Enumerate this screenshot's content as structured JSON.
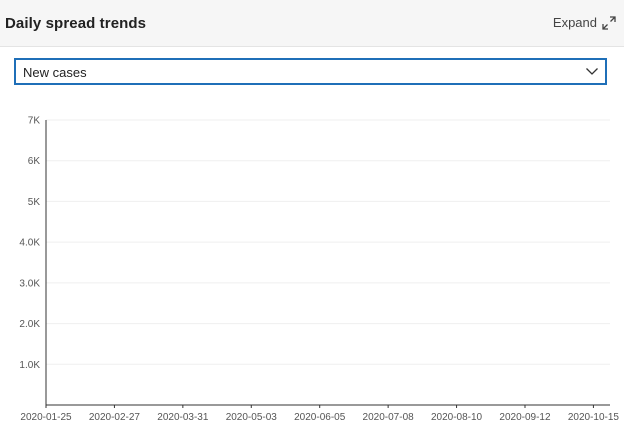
{
  "panel": {
    "title": "Daily spread trends",
    "expand_label": "Expand",
    "expand_icon": "expand-diagonal-icon"
  },
  "metric_select": {
    "value": "New cases",
    "chevron_icon": "chevron-down-icon"
  },
  "colors": {
    "bar_top": "#f7764a",
    "bar_bottom": "#fbb796",
    "border_accent": "#1f6fb8"
  },
  "chart_data": {
    "type": "bar",
    "title": "",
    "xlabel": "",
    "ylabel": "",
    "x_start": "2020-01-25",
    "x_end": "2020-10-22",
    "ylim": [
      0,
      7000
    ],
    "y_ticks": [
      {
        "value": 1000,
        "label": "1.0K"
      },
      {
        "value": 2000,
        "label": "2.0K"
      },
      {
        "value": 3000,
        "label": "3.0K"
      },
      {
        "value": 4000,
        "label": "4.0K"
      },
      {
        "value": 5000,
        "label": "5K"
      },
      {
        "value": 6000,
        "label": "6K"
      },
      {
        "value": 7000,
        "label": "7K"
      }
    ],
    "x_ticks": [
      "2020-01-25",
      "2020-02-27",
      "2020-03-31",
      "2020-05-03",
      "2020-06-05",
      "2020-07-08",
      "2020-08-10",
      "2020-09-12",
      "2020-10-15"
    ],
    "grid": true,
    "series": [
      {
        "values": [
          0,
          0,
          0,
          0,
          0,
          0,
          0,
          0,
          0,
          0,
          0,
          0,
          0,
          0,
          0,
          0,
          0,
          0,
          0,
          0,
          0,
          0,
          0,
          0,
          0,
          0,
          0,
          0,
          0,
          0,
          0,
          0,
          0,
          0,
          0,
          0,
          0,
          0,
          0,
          0,
          0,
          0,
          0,
          0,
          0,
          0,
          0,
          0,
          0,
          0,
          0,
          0,
          0,
          0,
          0,
          0,
          0,
          0,
          0,
          0,
          0,
          0,
          0,
          0,
          0,
          0,
          0,
          0,
          0,
          0,
          0,
          0,
          0,
          0,
          0,
          0,
          0,
          0,
          0,
          0,
          0,
          0,
          0,
          0,
          0,
          0,
          0,
          0,
          0,
          0,
          0,
          0,
          0,
          0,
          0,
          0,
          0,
          0,
          0,
          0,
          0,
          0,
          0,
          0,
          0,
          0,
          0,
          0,
          0,
          0,
          0,
          0,
          0,
          0,
          0,
          0,
          0,
          0,
          0,
          0,
          0,
          0,
          0,
          0,
          0,
          0,
          0,
          0,
          0,
          0,
          0,
          0,
          0,
          0,
          0,
          0,
          0,
          0,
          0,
          0,
          0,
          0,
          0,
          0,
          0,
          0,
          0,
          0,
          0,
          0,
          0,
          0,
          0,
          0,
          0,
          0,
          0,
          0,
          0,
          0,
          0,
          0,
          0,
          0,
          0,
          0,
          0,
          0,
          0,
          0,
          0,
          0,
          0,
          0,
          0,
          0,
          0,
          0,
          0,
          0,
          0,
          0,
          0,
          0,
          0,
          0,
          0,
          0,
          0,
          0,
          0,
          0,
          0,
          0,
          0,
          0,
          0,
          0,
          0,
          0,
          0,
          0,
          0,
          0,
          0,
          0,
          0,
          0,
          0,
          0,
          0,
          0,
          0,
          0,
          0,
          0,
          0,
          0,
          0,
          0,
          0,
          0,
          0,
          0,
          0,
          0,
          0,
          0,
          0,
          0,
          0,
          0,
          0,
          0,
          0,
          0,
          0,
          0,
          0,
          0,
          0,
          0,
          0,
          0,
          0,
          0,
          0,
          0,
          0,
          0,
          0,
          0,
          0,
          0,
          0,
          0,
          0,
          0,
          0,
          0,
          0,
          0,
          0,
          0,
          0,
          0,
          0,
          0,
          0,
          0,
          0,
          0,
          0,
          0,
          0,
          0,
          0,
          0,
          0,
          0,
          0,
          0,
          0,
          0,
          0,
          0,
          0,
          0,
          0,
          0,
          0,
          0,
          0,
          0,
          0,
          0,
          0,
          0
        ]
      }
    ]
  }
}
